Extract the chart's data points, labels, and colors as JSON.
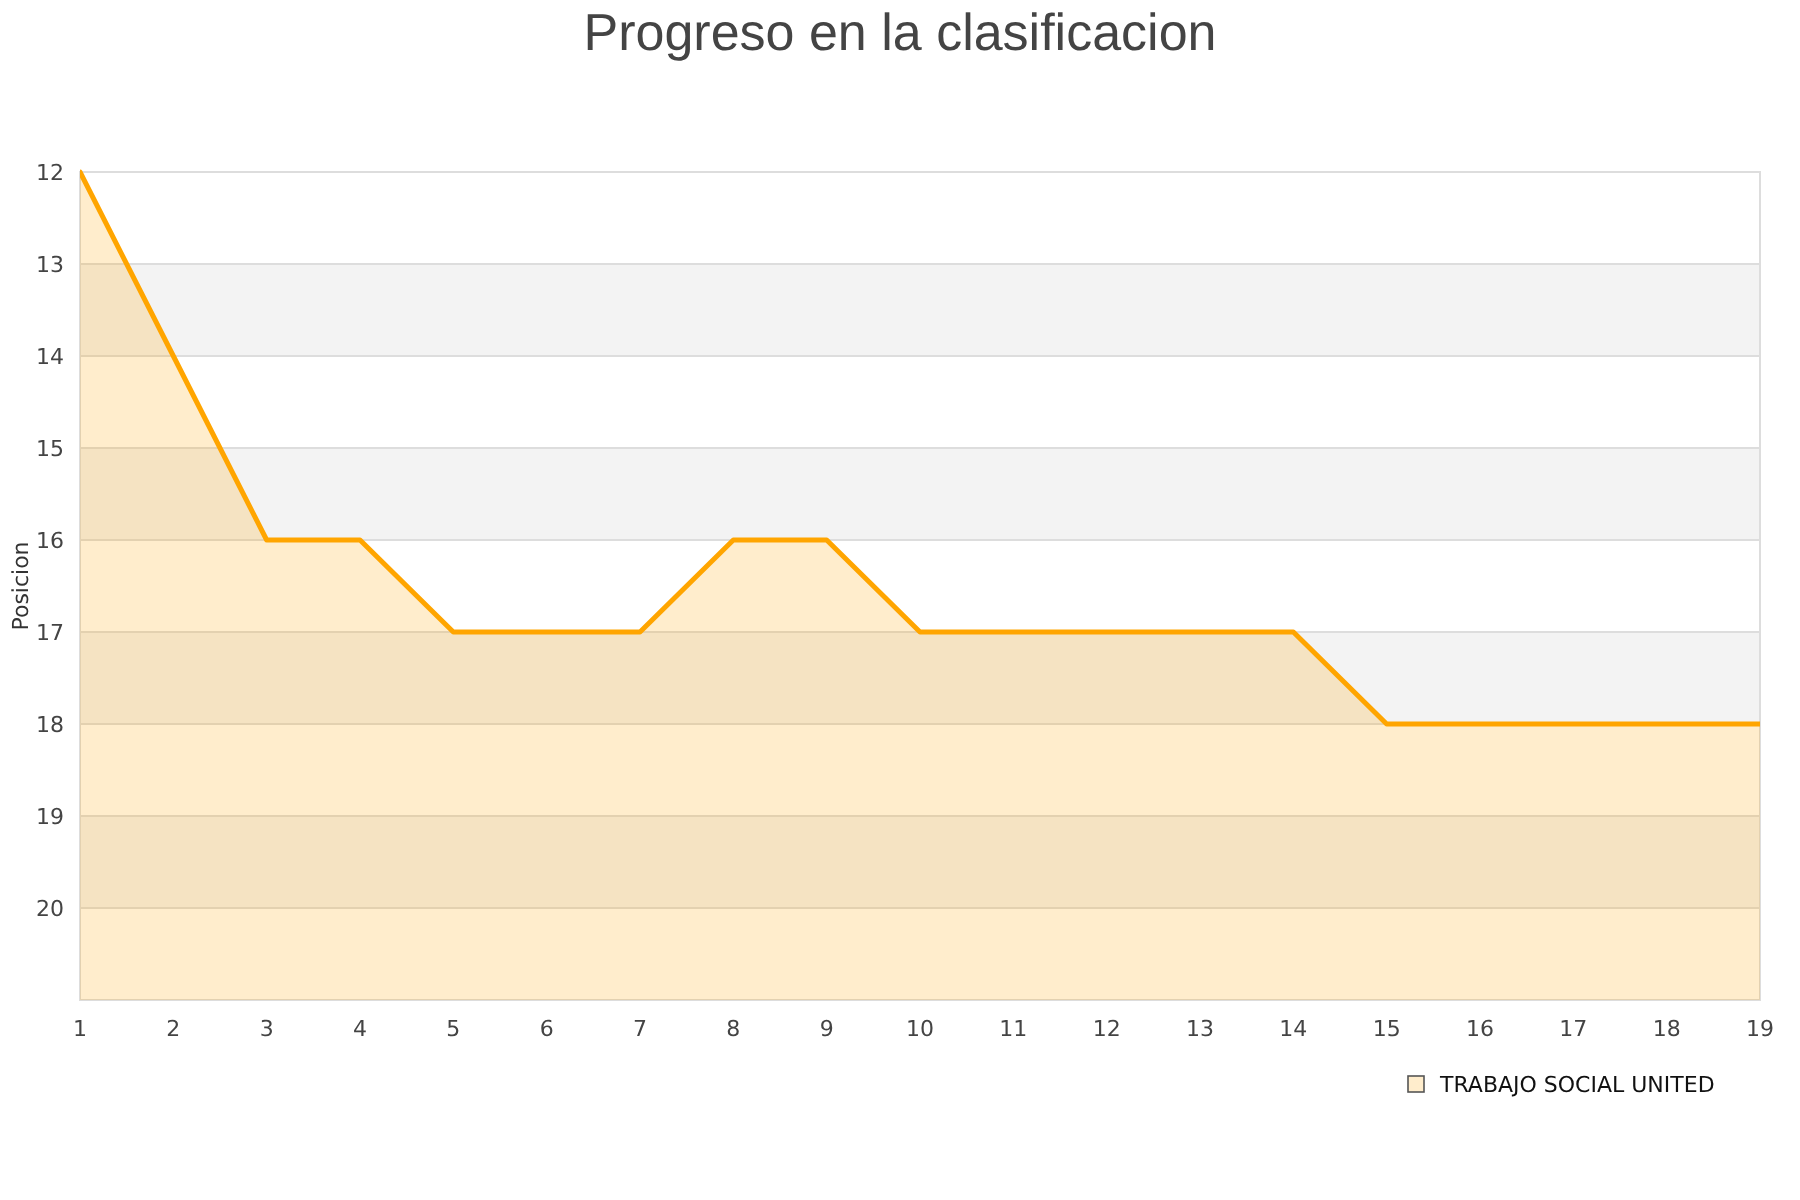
{
  "chart_data": {
    "type": "area",
    "title": "Progreso en la clasificacion",
    "ylabel": "Posicion",
    "x": [
      1,
      2,
      3,
      4,
      5,
      6,
      7,
      8,
      9,
      10,
      11,
      12,
      13,
      14,
      15,
      16,
      17,
      18,
      19
    ],
    "series": [
      {
        "name": "TRABAJO SOCIAL UNITED",
        "color": "#ffa500",
        "values": [
          12,
          14,
          16,
          16,
          17,
          17,
          17,
          16,
          16,
          17,
          17,
          17,
          17,
          17,
          18,
          18,
          18,
          18,
          18
        ]
      }
    ],
    "xlim": [
      1,
      19
    ],
    "xticks": [
      1,
      2,
      3,
      4,
      5,
      6,
      7,
      8,
      9,
      10,
      11,
      12,
      13,
      14,
      15,
      16,
      17,
      18,
      19
    ],
    "ylim": [
      21,
      12
    ],
    "yticks": [
      12,
      13,
      14,
      15,
      16,
      17,
      18,
      19,
      20
    ],
    "grid": "y",
    "legend": "bottom right",
    "marker": "none",
    "line_style": "solid"
  }
}
